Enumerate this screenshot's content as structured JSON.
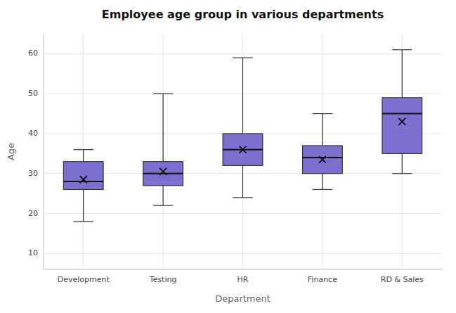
{
  "chart_data": {
    "type": "box",
    "title": "Employee age group in various departments",
    "x_label": "Department",
    "y_label": "Age",
    "categories": [
      "Development",
      "Testing",
      "HR",
      "Finance",
      "RD & Sales"
    ],
    "box_data": [
      {
        "whislo": 18,
        "q1": 26,
        "med": 28,
        "q3": 33,
        "whishi": 36,
        "mean": 28.5
      },
      {
        "whislo": 22,
        "q1": 27,
        "med": 30,
        "q3": 33,
        "whishi": 50,
        "mean": 30.5
      },
      {
        "whislo": 24,
        "q1": 32,
        "med": 36,
        "q3": 40,
        "whishi": 59,
        "mean": 36
      },
      {
        "whislo": 26,
        "q1": 30,
        "med": 34,
        "q3": 37,
        "whishi": 45,
        "mean": 33.5
      },
      {
        "whislo": 30,
        "q1": 35,
        "med": 45,
        "q3": 49,
        "whishi": 61,
        "mean": 43
      }
    ],
    "color": "#7B6FD0",
    "marker": "x",
    "ylim": [
      6,
      65
    ],
    "yticks": [
      10,
      20,
      30,
      40,
      50,
      60
    ],
    "grid": true
  }
}
